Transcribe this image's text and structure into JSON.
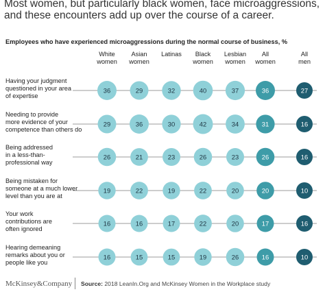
{
  "headline": "Most women, but particularly black women, face microaggressions, and these encounters add up over the course of a career.",
  "footer": {
    "logo": "McKinsey&Company",
    "source_label": "Source:",
    "source_text": "2018 LeanIn.Org and McKinsey Women in the Workplace study"
  },
  "colors": {
    "women_bubble": "#8fd0d8",
    "all_women_bubble": "#3e9ca8",
    "all_men_bubble": "#1f5d70",
    "row_line": "#7a7a7a"
  },
  "chart_data": {
    "type": "bubble-table",
    "title": "Employees who have experienced microaggressions during the normal course of business, %",
    "columns": [
      {
        "label": [
          "White",
          "women"
        ],
        "group": "women"
      },
      {
        "label": [
          "Asian",
          "women"
        ],
        "group": "women"
      },
      {
        "label": [
          "Latinas"
        ],
        "group": "women"
      },
      {
        "label": [
          "Black",
          "women"
        ],
        "group": "women"
      },
      {
        "label": [
          "Lesbian",
          "women"
        ],
        "group": "women"
      },
      {
        "label": [
          "All",
          "women"
        ],
        "group": "all-women"
      },
      {
        "label": [
          "All",
          "men"
        ],
        "group": "all-men"
      }
    ],
    "rows": [
      {
        "label": [
          "Having your judgment",
          "questioned in your area",
          "of expertise"
        ],
        "values": [
          36,
          29,
          32,
          40,
          37,
          36,
          27
        ]
      },
      {
        "label": [
          "Needing to provide",
          "more evidence of your",
          "competence than others do"
        ],
        "values": [
          29,
          36,
          30,
          42,
          34,
          31,
          16
        ]
      },
      {
        "label": [
          "Being addressed",
          "in a less-than-",
          "professional way"
        ],
        "values": [
          26,
          21,
          23,
          26,
          23,
          26,
          16
        ]
      },
      {
        "label": [
          "Being mistaken for",
          "someone at a much lower",
          "level than you are at"
        ],
        "values": [
          19,
          22,
          19,
          22,
          20,
          20,
          10
        ]
      },
      {
        "label": [
          "Your work",
          "contributions are",
          "often ignored"
        ],
        "values": [
          16,
          16,
          17,
          22,
          20,
          17,
          16
        ]
      },
      {
        "label": [
          "Hearing demeaning",
          "remarks about you or",
          "people like you"
        ],
        "values": [
          16,
          15,
          15,
          19,
          26,
          16,
          10
        ]
      }
    ]
  }
}
